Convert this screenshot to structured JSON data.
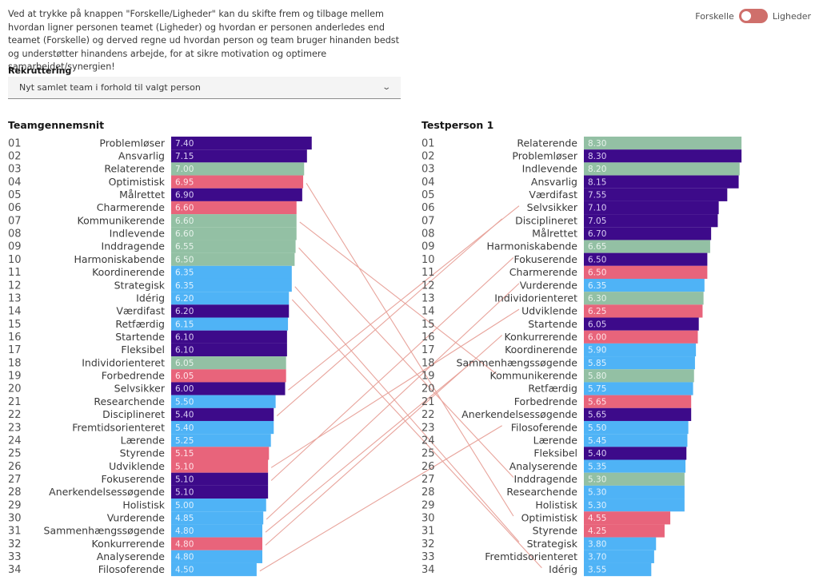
{
  "intro_text": "Ved at trykke på knappen \"Forskelle/Ligheder\" kan du skifte frem og tilbage mellem hvordan ligner personen teamet (Ligheder) og hvordan er personen anderledes end teamet (Forskelle) og derved regne ud hvordan person og team bruger hinanden bedst og understøtter hinandens arbejde, for at sikre motivation og optimere samarbejdet/synergien!",
  "toggle": {
    "left_label": "Forskelle",
    "right_label": "Ligheder",
    "state": "Forskelle",
    "color": "#cf6f6b"
  },
  "dropdown": {
    "label": "Rekruttering",
    "selected": "Nyt samlet team i forhold til valgt person",
    "icon": "chevron-down-icon"
  },
  "colors": {
    "purple": "#3d0a8a",
    "green": "#93c0a4",
    "pink": "#e8647b",
    "blue": "#4fb3f6",
    "connector": "#e8a49c"
  },
  "chart_data": [
    {
      "type": "bar",
      "title": "Teamgennemsnit",
      "orientation": "horizontal",
      "categories": [
        "Problemløser",
        "Ansvarlig",
        "Relaterende",
        "Optimistisk",
        "Målrettet",
        "Charmerende",
        "Kommunikerende",
        "Indlevende",
        "Inddragende",
        "Harmoniskabende",
        "Koordinerende",
        "Strategisk",
        "Idérig",
        "Værdifast",
        "Retfærdig",
        "Startende",
        "Fleksibel",
        "Individorienteret",
        "Forbedrende",
        "Selvsikker",
        "Researchende",
        "Disciplineret",
        "Fremtidsorienteret",
        "Lærende",
        "Styrende",
        "Udviklende",
        "Fokuserende",
        "Anerkendelsessøgende",
        "Holistisk",
        "Vurderende",
        "Sammenhængssøgende",
        "Konkurrerende",
        "Analyserende",
        "Filosoferende"
      ],
      "values": [
        7.4,
        7.15,
        7.0,
        6.95,
        6.9,
        6.6,
        6.6,
        6.6,
        6.55,
        6.5,
        6.35,
        6.35,
        6.2,
        6.2,
        6.15,
        6.1,
        6.1,
        6.05,
        6.05,
        6.0,
        5.5,
        5.4,
        5.4,
        5.25,
        5.15,
        5.1,
        5.1,
        5.1,
        5.0,
        4.85,
        4.8,
        4.8,
        4.8,
        4.5
      ],
      "value_labels": [
        "7.40",
        "7.15",
        "7.00",
        "6.95",
        "6.90",
        "6.60",
        "6.60",
        "6.60",
        "6.55",
        "6.50",
        "6.35",
        "6.35",
        "6.20",
        "6.20",
        "6.15",
        "6.10",
        "6.10",
        "6.05",
        "6.05",
        "6.00",
        "5.50",
        "5.40",
        "5.40",
        "5.25",
        "5.15",
        "5.10",
        "5.10",
        "5.10",
        "5.00",
        "4.85",
        "4.80",
        "4.80",
        "4.80",
        "4.50"
      ],
      "groups": [
        "purple",
        "purple",
        "green",
        "pink",
        "purple",
        "pink",
        "green",
        "green",
        "green",
        "green",
        "blue",
        "blue",
        "blue",
        "purple",
        "blue",
        "purple",
        "purple",
        "green",
        "pink",
        "purple",
        "blue",
        "purple",
        "blue",
        "blue",
        "pink",
        "pink",
        "purple",
        "purple",
        "blue",
        "blue",
        "blue",
        "pink",
        "blue",
        "blue"
      ],
      "ranks": [
        "01",
        "02",
        "03",
        "04",
        "05",
        "06",
        "07",
        "08",
        "09",
        "10",
        "11",
        "12",
        "13",
        "14",
        "15",
        "16",
        "17",
        "18",
        "19",
        "20",
        "21",
        "22",
        "23",
        "24",
        "25",
        "26",
        "27",
        "28",
        "29",
        "30",
        "31",
        "32",
        "33",
        "34"
      ]
    },
    {
      "type": "bar",
      "title": "Testperson 1",
      "orientation": "horizontal",
      "categories": [
        "Relaterende",
        "Problemløser",
        "Indlevende",
        "Ansvarlig",
        "Værdifast",
        "Selvsikker",
        "Disciplineret",
        "Målrettet",
        "Harmoniskabende",
        "Fokuserende",
        "Charmerende",
        "Vurderende",
        "Individorienteret",
        "Udviklende",
        "Startende",
        "Konkurrerende",
        "Koordinerende",
        "Sammenhængssøgende",
        "Kommunikerende",
        "Retfærdig",
        "Forbedrende",
        "Anerkendelsessøgende",
        "Filosoferende",
        "Lærende",
        "Fleksibel",
        "Analyserende",
        "Inddragende",
        "Researchende",
        "Holistisk",
        "Optimistisk",
        "Styrende",
        "Strategisk",
        "Fremtidsorienteret",
        "Idérig"
      ],
      "values": [
        8.3,
        8.3,
        8.2,
        8.15,
        7.55,
        7.1,
        7.05,
        6.7,
        6.65,
        6.5,
        6.5,
        6.35,
        6.3,
        6.25,
        6.05,
        6.0,
        5.9,
        5.85,
        5.8,
        5.75,
        5.65,
        5.65,
        5.5,
        5.45,
        5.4,
        5.35,
        5.3,
        5.3,
        5.3,
        4.55,
        4.25,
        3.8,
        3.7,
        3.55
      ],
      "value_labels": [
        "8.30",
        "8.30",
        "8.20",
        "8.15",
        "7.55",
        "7.10",
        "7.05",
        "6.70",
        "6.65",
        "6.50",
        "6.50",
        "6.35",
        "6.30",
        "6.25",
        "6.05",
        "6.00",
        "5.90",
        "5.85",
        "5.80",
        "5.75",
        "5.65",
        "5.65",
        "5.50",
        "5.45",
        "5.40",
        "5.35",
        "5.30",
        "5.30",
        "5.30",
        "4.55",
        "4.25",
        "3.80",
        "3.70",
        "3.55"
      ],
      "groups": [
        "green",
        "purple",
        "green",
        "purple",
        "purple",
        "purple",
        "purple",
        "purple",
        "green",
        "purple",
        "pink",
        "blue",
        "green",
        "pink",
        "purple",
        "pink",
        "blue",
        "blue",
        "green",
        "blue",
        "pink",
        "purple",
        "blue",
        "blue",
        "purple",
        "blue",
        "green",
        "blue",
        "blue",
        "pink",
        "pink",
        "blue",
        "blue",
        "blue"
      ],
      "ranks": [
        "01",
        "02",
        "03",
        "04",
        "05",
        "06",
        "07",
        "08",
        "09",
        "10",
        "11",
        "12",
        "13",
        "14",
        "15",
        "16",
        "17",
        "18",
        "19",
        "20",
        "21",
        "22",
        "23",
        "24",
        "25",
        "26",
        "27",
        "28",
        "29",
        "30",
        "31",
        "32",
        "33",
        "34"
      ]
    }
  ],
  "connections": [
    "Optimistisk",
    "Kommunikerende",
    "Inddragende",
    "Strategisk",
    "Idérig",
    "Selvsikker",
    "Disciplineret",
    "Udviklende",
    "Fokuserende",
    "Vurderende",
    "Sammenhængssøgende",
    "Konkurrerende",
    "Filosoferende"
  ]
}
